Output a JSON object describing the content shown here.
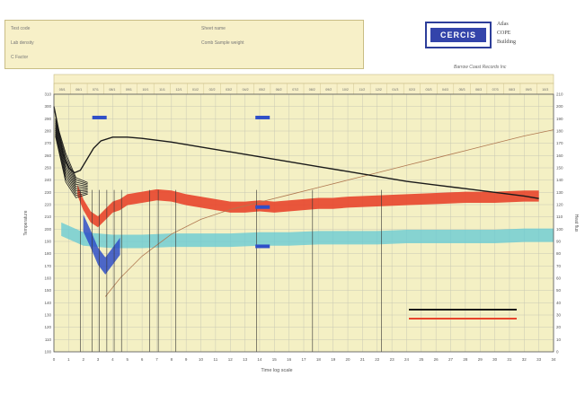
{
  "info_panel": {
    "rows": [
      {
        "left_label": "Test code",
        "left_value": "",
        "right_label": "Sheet name",
        "right_value": ""
      },
      {
        "left_label": "Lab density",
        "left_value": "",
        "right_label": "Comb Sample weight",
        "right_value": ""
      },
      {
        "left_label": "C Factor",
        "left_value": "",
        "right_label": "",
        "right_value": ""
      }
    ]
  },
  "logo": {
    "mark": "CERCIS",
    "lines": [
      "Atlas",
      "COPE",
      "Building"
    ]
  },
  "publisher": "Barrow Coast Records Inc",
  "colors": {
    "plot_background": "#f4f0c4",
    "grid": "#c8c8b4",
    "black_curve": "#1a1a1a",
    "red_band": "#e8452c",
    "blue_band": "#2f4fc8",
    "cyan_band": "#62c9d6",
    "brown_curve": "#b07850",
    "vertical_lines": "#333333"
  },
  "chart_data": {
    "type": "line",
    "title": "",
    "xlabel": "Time log scale",
    "ylabel": "Temperature",
    "y2label": "Heat flux",
    "top_axis_label": "",
    "bottom_tick_labels": [
      "0",
      "1",
      "2",
      "3",
      "4",
      "5",
      "6",
      "7",
      "8",
      "9",
      "10",
      "11",
      "12",
      "13",
      "14",
      "15",
      "16",
      "17",
      "18",
      "19",
      "20",
      "21",
      "22",
      "23",
      "24",
      "25",
      "26",
      "27",
      "28",
      "29",
      "30",
      "31",
      "32",
      "33",
      "34"
    ],
    "top_tick_labels": [
      "05/1",
      "06/1",
      "07/1",
      "08/1",
      "09/1",
      "10/1",
      "11/1",
      "12/1",
      "01/2",
      "02/2",
      "03/2",
      "04/2",
      "05/2",
      "06/2",
      "07/2",
      "08/2",
      "09/2",
      "10/2",
      "11/2",
      "12/2",
      "01/3",
      "02/3",
      "03/3",
      "04/3",
      "05/3",
      "06/3",
      "07/3",
      "08/3",
      "09/3",
      "10/3"
    ],
    "left_tick_labels": [
      "100",
      "110",
      "120",
      "130",
      "140",
      "150",
      "160",
      "170",
      "180",
      "190",
      "200",
      "210",
      "220",
      "230",
      "240",
      "250",
      "260",
      "270",
      "280",
      "290",
      "300",
      "310"
    ],
    "right_tick_labels": [
      "0",
      "10",
      "20",
      "30",
      "40",
      "50",
      "60",
      "70",
      "80",
      "90",
      "100",
      "110",
      "120",
      "130",
      "140",
      "150",
      "160",
      "170",
      "180",
      "190",
      "200",
      "210"
    ],
    "xlim": [
      0,
      34
    ],
    "ylim": [
      100,
      310
    ],
    "grid": true,
    "legend_position": "bottom-right",
    "legend": [
      {
        "name": "",
        "color": "#1a1a1a"
      },
      {
        "name": "",
        "color": "#e8452c"
      }
    ],
    "series": [
      {
        "name": "",
        "kind": "line",
        "color": "#1a1a1a",
        "x": [
          0,
          0.3,
          0.6,
          1,
          1.4,
          1.8,
          2.2,
          2.7,
          3.2,
          4,
          5,
          6,
          8,
          10,
          12,
          14,
          16,
          18,
          20,
          22,
          24,
          26,
          28,
          30,
          32,
          33
        ],
        "y": [
          300,
          282,
          262,
          250,
          246,
          248,
          256,
          266,
          272,
          275,
          275,
          274,
          271,
          267,
          263,
          259,
          255,
          251,
          247,
          243,
          239,
          236,
          233,
          230,
          227,
          225
        ]
      },
      {
        "name": "",
        "kind": "line",
        "color": "#b07850",
        "x": [
          3.5,
          4.5,
          6,
          8,
          10,
          12,
          14,
          16,
          18,
          20,
          22,
          24,
          26,
          28,
          30,
          32,
          34
        ],
        "y": [
          145,
          160,
          178,
          196,
          208,
          216,
          222,
          228,
          234,
          240,
          246,
          252,
          258,
          264,
          270,
          276,
          281
        ]
      },
      {
        "name": "",
        "kind": "band",
        "color": "#e8452c",
        "x": [
          1.6,
          2,
          2.5,
          3,
          3.5,
          4,
          4.5,
          5,
          6,
          7,
          8,
          9,
          10,
          11,
          12,
          13,
          14,
          15,
          16,
          17,
          18,
          19,
          20,
          22,
          24,
          26,
          28,
          30,
          32,
          33
        ],
        "y": [
          232,
          220,
          210,
          206,
          212,
          218,
          220,
          224,
          226,
          228,
          227,
          224,
          222,
          220,
          218,
          218,
          219,
          218,
          219,
          220,
          221,
          221,
          222,
          223,
          224,
          225,
          226,
          226,
          227,
          227
        ]
      },
      {
        "name": "",
        "kind": "band",
        "color": "#2f4fc8",
        "x": [
          2,
          2.5,
          3,
          3.5,
          4,
          4.5
        ],
        "y": [
          205,
          192,
          178,
          170,
          178,
          186
        ]
      },
      {
        "name": "",
        "kind": "band",
        "color": "#62c9d6",
        "x": [
          0.5,
          2,
          4,
          6,
          8,
          10,
          12,
          14,
          16,
          18,
          20,
          22,
          24,
          26,
          28,
          30,
          32,
          34
        ],
        "y": [
          200,
          192,
          190,
          190,
          191,
          191,
          191,
          192,
          192,
          193,
          193,
          193,
          194,
          194,
          194,
          194,
          195,
          195
        ]
      }
    ],
    "blue_markers": [
      {
        "x": 3.1,
        "y": 291
      },
      {
        "x": 14.2,
        "y": 291
      },
      {
        "x": 14.2,
        "y": 218
      },
      {
        "x": 14.2,
        "y": 186
      }
    ],
    "vertical_events": [
      1.8,
      2.6,
      3.1,
      3.6,
      4.1,
      4.6,
      6.5,
      7.1,
      8.3,
      13.8,
      17.6,
      22.3
    ],
    "annotations": [
      "",
      "",
      "",
      "",
      "",
      ""
    ]
  }
}
